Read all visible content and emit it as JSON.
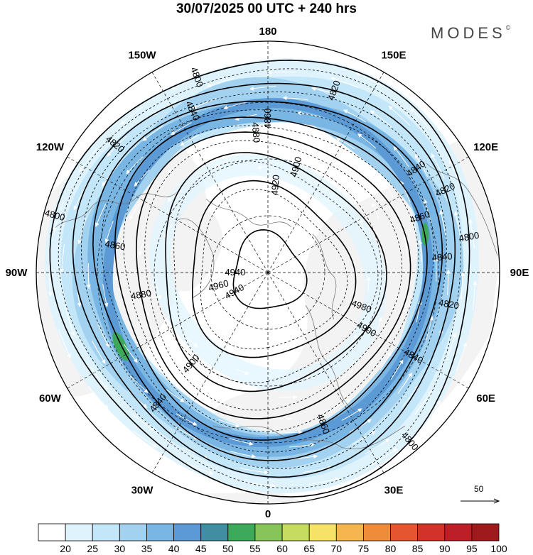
{
  "title": "30/07/2025  00 UTC  + 240 hrs",
  "brand": "MODES",
  "brand_mark": "©",
  "map": {
    "projection": "north-polar-stereographic",
    "longitude_labels": [
      {
        "text": "180",
        "lon": 180
      },
      {
        "text": "150E",
        "lon": 150
      },
      {
        "text": "120E",
        "lon": 120
      },
      {
        "text": "90E",
        "lon": 90
      },
      {
        "text": "60E",
        "lon": 60
      },
      {
        "text": "30E",
        "lon": 30
      },
      {
        "text": "0",
        "lon": 0
      },
      {
        "text": "30W",
        "lon": -30
      },
      {
        "text": "60W",
        "lon": -60
      },
      {
        "text": "90W",
        "lon": -90
      },
      {
        "text": "120W",
        "lon": -120
      },
      {
        "text": "150W",
        "lon": -150
      }
    ],
    "contours": [
      {
        "value": 4800,
        "label": "4800"
      },
      {
        "value": 4820,
        "label": "4820"
      },
      {
        "value": 4840,
        "label": "4840"
      },
      {
        "value": 4860,
        "label": "4860"
      },
      {
        "value": 4880,
        "label": "4880"
      },
      {
        "value": 4900,
        "label": "4900"
      },
      {
        "value": 4920,
        "label": "4920"
      },
      {
        "value": 4940,
        "label": "4940"
      }
    ],
    "contour_labels": [
      {
        "text": "4800",
        "contour": 4800
      },
      {
        "text": "4800",
        "contour": 4800
      },
      {
        "text": "4800",
        "contour": 4800
      },
      {
        "text": "4800",
        "contour": 4800
      },
      {
        "text": "4820",
        "contour": 4820
      },
      {
        "text": "4820",
        "contour": 4820
      },
      {
        "text": "4820",
        "contour": 4820
      },
      {
        "text": "4820",
        "contour": 4820
      },
      {
        "text": "4840",
        "contour": 4840
      },
      {
        "text": "4840",
        "contour": 4840
      },
      {
        "text": "4840",
        "contour": 4840
      },
      {
        "text": "4840",
        "contour": 4840
      },
      {
        "text": "4840",
        "contour": 4840
      },
      {
        "text": "4860",
        "contour": 4860
      },
      {
        "text": "4860",
        "contour": 4860
      },
      {
        "text": "4860",
        "contour": 4860
      },
      {
        "text": "4860",
        "contour": 4860
      },
      {
        "text": "4880",
        "contour": 4880
      },
      {
        "text": "4880",
        "contour": 4880
      },
      {
        "text": "4900",
        "contour": 4900
      },
      {
        "text": "4900",
        "contour": 4900
      },
      {
        "text": "4900",
        "contour": 4900
      },
      {
        "text": "4920",
        "contour": 4920
      },
      {
        "text": "4940",
        "contour": 4940
      },
      {
        "text": "4940",
        "contour": 4940
      },
      {
        "text": "4960",
        "contour": 4960
      },
      {
        "text": "4980",
        "contour": 4980
      }
    ],
    "wind_speed_colors": [
      "#ffffff",
      "#dff3fd",
      "#c3e6f9",
      "#a2d2f0",
      "#7ab6e3",
      "#5b9ad5",
      "#3f8fa0",
      "#3caa5a",
      "#86c55a",
      "#c6dc60",
      "#f7e268",
      "#f5b54f",
      "#ef8c3a",
      "#e5552f",
      "#d23227",
      "#bd1f27",
      "#9e1a1d"
    ],
    "land_color": "#f3f3f3",
    "stream_color": "#ffffff"
  },
  "colorbar": {
    "labels": [
      "20",
      "25",
      "30",
      "35",
      "40",
      "45",
      "50",
      "55",
      "60",
      "65",
      "70",
      "75",
      "80",
      "85",
      "90",
      "95",
      "100"
    ],
    "colors": [
      "#ffffff",
      "#dff3fd",
      "#c3e6f9",
      "#a2d2f0",
      "#7ab6e3",
      "#5b9ad5",
      "#3f8fa0",
      "#3caa5a",
      "#86c55a",
      "#c6dc60",
      "#f7e268",
      "#f5b54f",
      "#ef8c3a",
      "#e5552f",
      "#d23227",
      "#bd1f27",
      "#9e1a1d"
    ]
  },
  "reference_vector": {
    "label": "50"
  }
}
